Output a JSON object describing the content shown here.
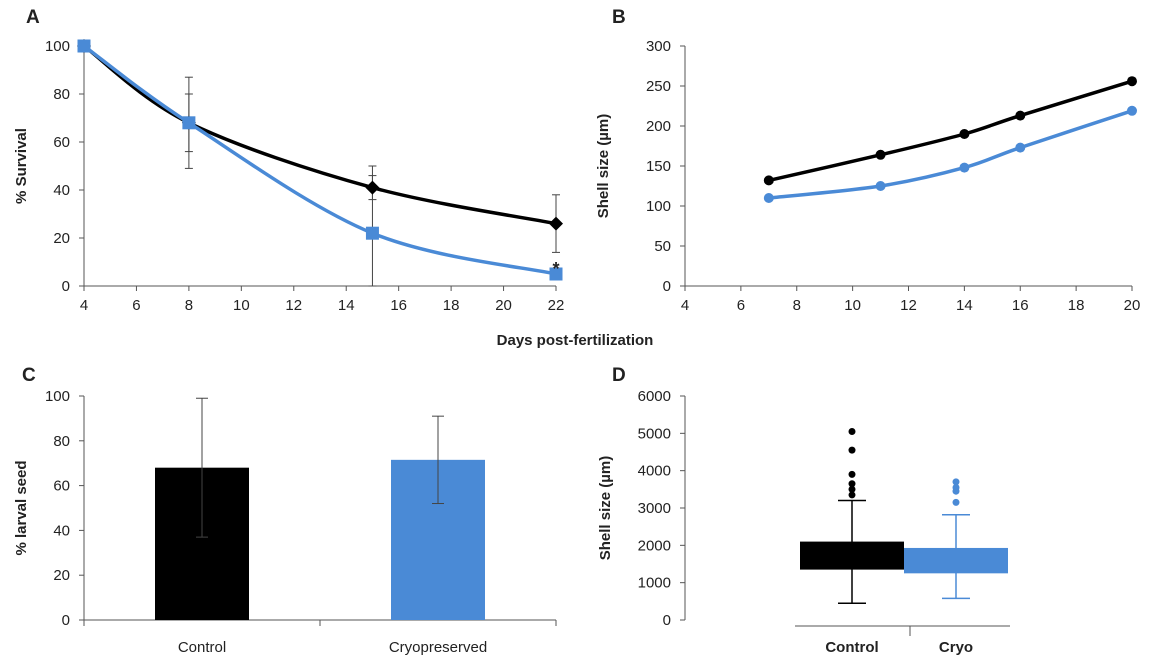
{
  "colors": {
    "control": "#000000",
    "cryo": "#4a8ad6",
    "axis": "#555555",
    "error_bar": "#444444"
  },
  "chart_data": [
    {
      "panel": "A",
      "type": "line",
      "xlabel": "Days post-fertilization",
      "ylabel": "% Survival",
      "xlim": [
        4,
        22
      ],
      "ylim": [
        0,
        100
      ],
      "xticks": [
        4,
        6,
        8,
        10,
        12,
        14,
        16,
        18,
        20,
        22
      ],
      "yticks": [
        0,
        20,
        40,
        60,
        80,
        100
      ],
      "grid": false,
      "series": [
        {
          "key": "control",
          "marker": "diamond",
          "x": [
            4,
            8,
            15,
            22
          ],
          "y": [
            100,
            68,
            41,
            26
          ],
          "err": [
            0,
            12,
            5,
            12
          ]
        },
        {
          "key": "cryo",
          "marker": "square",
          "x": [
            4,
            8,
            15,
            22
          ],
          "y": [
            100,
            68,
            22,
            5
          ],
          "err": [
            0,
            19,
            28,
            1
          ]
        }
      ],
      "annotations": [
        {
          "x": 22,
          "y": 7,
          "text": "*"
        }
      ]
    },
    {
      "panel": "B",
      "type": "line",
      "xlabel": "",
      "ylabel": "Shell size (µm)",
      "xlim": [
        4,
        20
      ],
      "ylim": [
        0,
        300
      ],
      "xticks": [
        4,
        6,
        8,
        10,
        12,
        14,
        16,
        18,
        20
      ],
      "yticks": [
        0,
        50,
        100,
        150,
        200,
        250,
        300
      ],
      "grid": false,
      "series": [
        {
          "key": "control",
          "marker": "circle",
          "x": [
            7,
            11,
            14,
            16,
            20
          ],
          "y": [
            132,
            164,
            190,
            213,
            256
          ]
        },
        {
          "key": "cryo",
          "marker": "circle",
          "x": [
            7,
            11,
            14,
            16,
            20
          ],
          "y": [
            110,
            125,
            148,
            173,
            219
          ]
        }
      ]
    },
    {
      "panel": "C",
      "type": "bar",
      "xlabel": "",
      "ylabel": "% larval seed",
      "ylim": [
        0,
        100
      ],
      "yticks": [
        0,
        20,
        40,
        60,
        80,
        100
      ],
      "grid": false,
      "categories": [
        "Control",
        "Cryopreserved"
      ],
      "values": [
        68,
        71.5
      ],
      "errors": [
        31,
        19.5
      ]
    },
    {
      "panel": "D",
      "type": "box",
      "xlabel": "",
      "ylabel": "Shell size (µm)",
      "ylim": [
        0,
        6000
      ],
      "yticks": [
        0,
        1000,
        2000,
        3000,
        4000,
        5000,
        6000
      ],
      "grid": false,
      "categories": [
        "Control",
        "Cryo"
      ],
      "boxes": [
        {
          "key": "control",
          "whisker_low": 450,
          "q1": 1350,
          "q3": 2100,
          "whisker_high": 3200,
          "outliers": [
            3350,
            3500,
            3650,
            3900,
            4550,
            5050
          ]
        },
        {
          "key": "cryo",
          "whisker_low": 580,
          "q1": 1250,
          "q3": 1930,
          "whisker_high": 2820,
          "outliers": [
            3150,
            3450,
            3550,
            3700
          ]
        }
      ]
    }
  ]
}
